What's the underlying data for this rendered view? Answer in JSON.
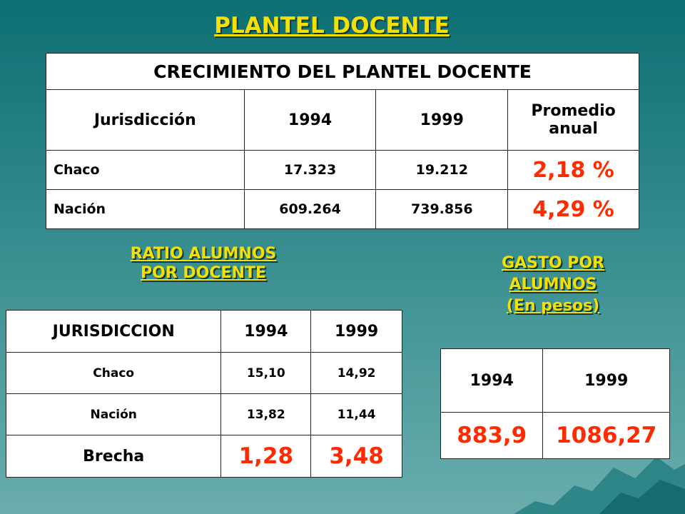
{
  "main_title": "PLANTEL DOCENTE",
  "crecimiento": {
    "caption": "CRECIMIENTO DEL PLANTEL DOCENTE",
    "headers": {
      "jurisdiccion": "Jurisdicción",
      "y1994": "1994",
      "y1999": "1999",
      "promedio_line1": "Promedio",
      "promedio_line2": "anual"
    },
    "rows": [
      {
        "name": "Chaco",
        "y1994": "17.323",
        "y1999": "19.212",
        "promedio": "2,18 %"
      },
      {
        "name": "Nación",
        "y1994": "609.264",
        "y1999": "739.856",
        "promedio": "4,29 %"
      }
    ]
  },
  "ratio": {
    "title_line1": "RATIO ALUMNOS",
    "title_line2": "POR DOCENTE",
    "headers": {
      "jurisdiccion": "JURISDICCION",
      "y1994": "1994",
      "y1999": "1999"
    },
    "rows": [
      {
        "name": "Chaco",
        "y1994": "15,10",
        "y1999": "14,92"
      },
      {
        "name": "Nación",
        "y1994": "13,82",
        "y1999": "11,44"
      }
    ],
    "brecha": {
      "label": "Brecha",
      "y1994": "1,28",
      "y1999": "3,48"
    }
  },
  "gasto": {
    "title_line1": "GASTO POR",
    "title_line2": "ALUMNOS",
    "title_line3": "(En pesos)",
    "headers": {
      "y1994": "1994",
      "y1999": "1999"
    },
    "values": {
      "y1994": "883,9",
      "y1999": "1086,27"
    }
  },
  "colors": {
    "title_yellow": "#f5e000",
    "highlight_red": "#ff2a00",
    "background_teal": "#2a8587"
  }
}
